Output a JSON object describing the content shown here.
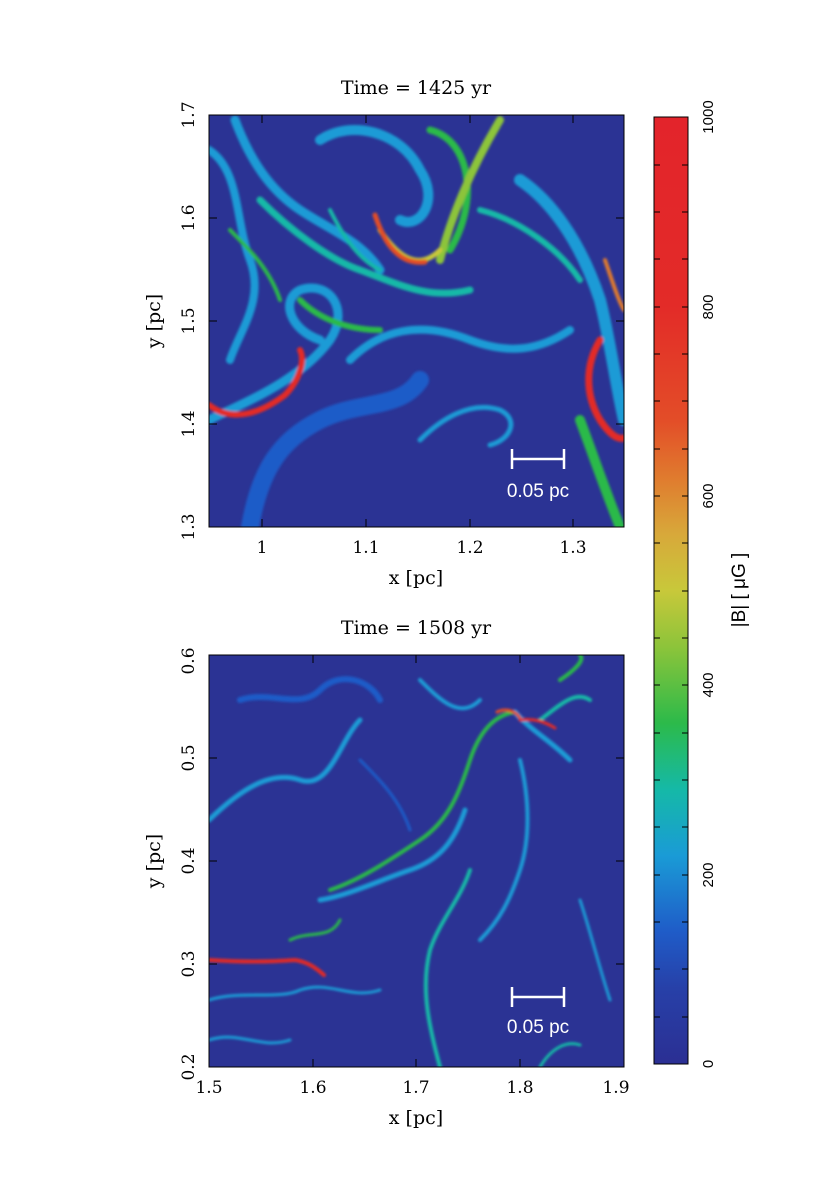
{
  "panels": [
    {
      "title": "Time = 1425 yr",
      "xlabel": "x [pc]",
      "ylabel": "y [pc]",
      "xticks": [
        "1",
        "1.1",
        "1.2",
        "1.3"
      ],
      "yticks": [
        "1.3",
        "1.4",
        "1.5",
        "1.6",
        "1.7"
      ],
      "scale_bar_label": "0.05 pc"
    },
    {
      "title": "Time = 1508 yr",
      "xlabel": "x [pc]",
      "ylabel": "y [pc]",
      "xticks": [
        "1.5",
        "1.6",
        "1.7",
        "1.8",
        "1.9"
      ],
      "yticks": [
        "0.2",
        "0.3",
        "0.4",
        "0.5",
        "0.6"
      ],
      "scale_bar_label": "0.05 pc"
    }
  ],
  "colorbar": {
    "label": "|B| [ μG ]",
    "ticks": [
      "0",
      "200",
      "400",
      "600",
      "800",
      "1000"
    ],
    "colors": [
      "#2b2f93",
      "#1f5cc8",
      "#1a9bd6",
      "#15b9a7",
      "#2cba4a",
      "#a8c93a",
      "#d8b73a",
      "#e07a2e",
      "#e33b26",
      "#e3242b"
    ]
  }
}
